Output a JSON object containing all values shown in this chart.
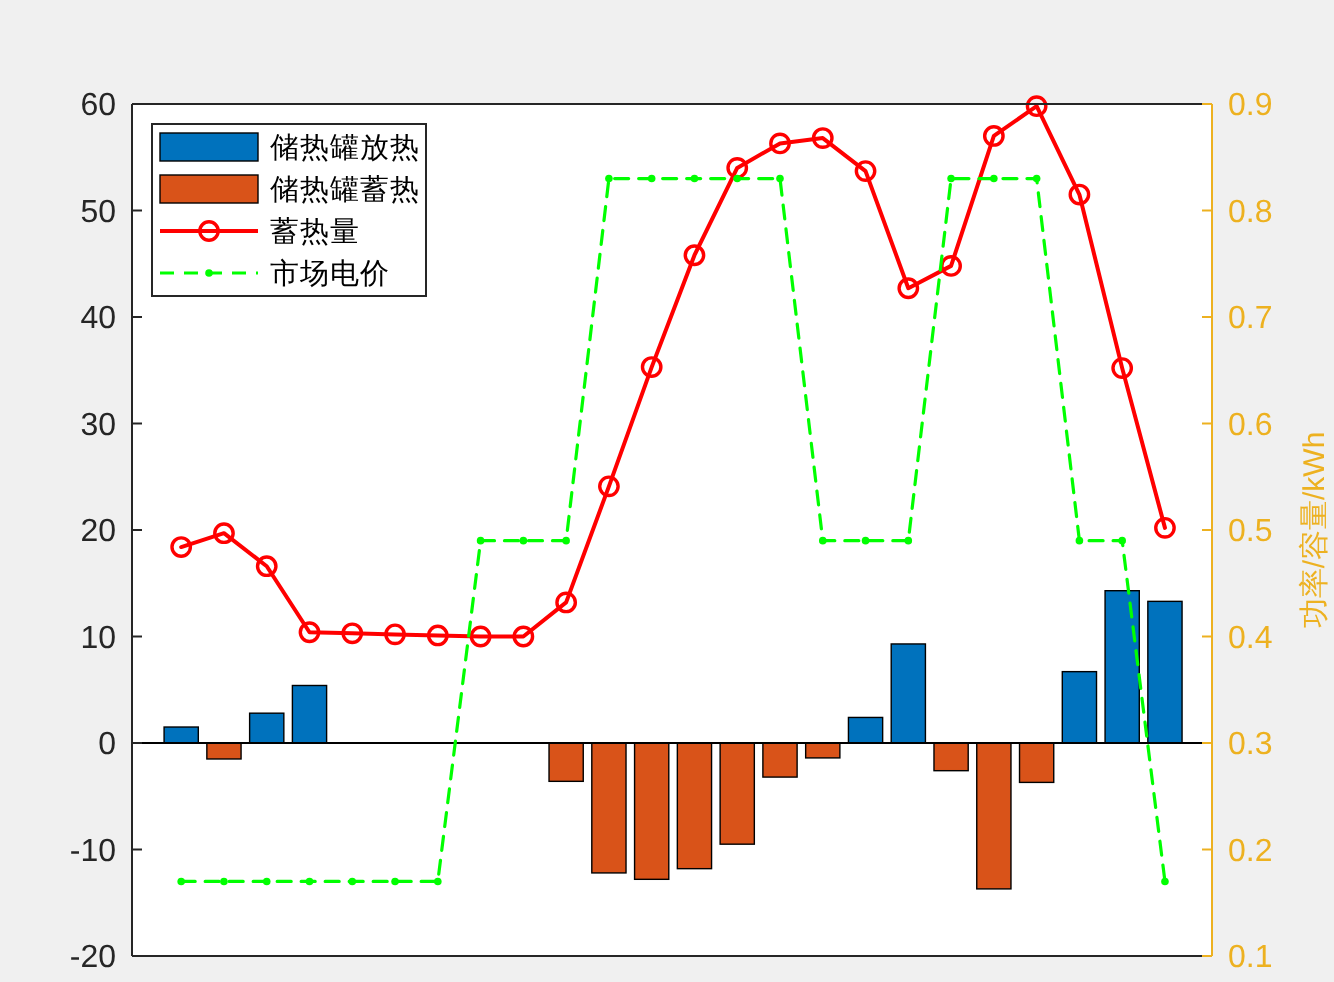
{
  "chart_data": {
    "type": "bar",
    "stacked": true,
    "categories": [
      null,
      null,
      null,
      null,
      null,
      null,
      null,
      null,
      null,
      null,
      null,
      null,
      null,
      null,
      null,
      null,
      null,
      null,
      null,
      null,
      null,
      null,
      null,
      null
    ],
    "series": [
      {
        "name": "储热罐放热",
        "color": "#0072bd",
        "values": [
          1.5,
          null,
          2.8,
          5.4,
          null,
          null,
          null,
          null,
          null,
          null,
          null,
          null,
          null,
          null,
          null,
          null,
          2.4,
          9.3,
          null,
          null,
          null,
          6.7,
          14.3,
          13.3
        ]
      },
      {
        "name": "储热罐蓄热",
        "color": "#d95319",
        "values": [
          null,
          -1.5,
          null,
          null,
          null,
          null,
          null,
          null,
          null,
          -3.6,
          -12.2,
          -12.8,
          -11.8,
          -9.5,
          -3.2,
          -1.4,
          null,
          null,
          -2.6,
          -13.7,
          -3.7,
          null,
          null,
          null
        ]
      },
      {
        "name": "蓄热量",
        "type": "line",
        "color": "#ff0000",
        "marker": "circle",
        "line_style": "solid",
        "values": [
          18.4,
          19.7,
          16.6,
          10.4,
          10.3,
          10.2,
          10.1,
          10.0,
          10.0,
          13.2,
          24.1,
          35.3,
          45.8,
          54.0,
          56.3,
          56.8,
          53.7,
          42.7,
          44.8,
          57.0,
          59.8,
          51.5,
          35.2,
          20.2
        ]
      },
      {
        "name": "市场电价",
        "type": "line",
        "axis": "y2",
        "color": "#00ff00",
        "marker": "circle",
        "line_style": "dashed",
        "values": [
          0.17,
          0.17,
          0.17,
          0.17,
          0.17,
          0.17,
          0.17,
          0.49,
          0.49,
          0.49,
          0.83,
          0.83,
          0.83,
          0.83,
          0.83,
          0.49,
          0.49,
          0.49,
          0.83,
          0.83,
          0.83,
          0.49,
          0.49,
          0.17
        ]
      }
    ],
    "ylim": [
      -20,
      60
    ],
    "yticks": [
      -20,
      -10,
      0,
      10,
      20,
      30,
      40,
      50,
      60
    ],
    "y2lim": [
      0.1,
      0.9
    ],
    "y2ticks": [
      0.1,
      0.2,
      0.3,
      0.4,
      0.5,
      0.6,
      0.7,
      0.8,
      0.9
    ],
    "y2label": "功率/容量/kWh",
    "legend": "top left"
  }
}
